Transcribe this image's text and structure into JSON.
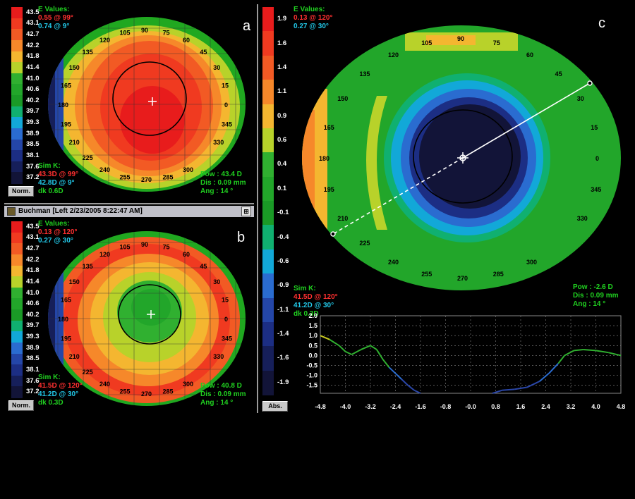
{
  "panel_a": {
    "letter": "a",
    "scale": [
      "43.5",
      "43.1",
      "42.7",
      "42.2",
      "41.8",
      "41.4",
      "41.0",
      "40.6",
      "40.2",
      "39.7",
      "39.3",
      "38.9",
      "38.5",
      "38.1",
      "37.6",
      "37.2"
    ],
    "scale_colors": [
      "#e81c1c",
      "#f03a20",
      "#f25a24",
      "#f6882a",
      "#f4b630",
      "#b8d22a",
      "#30b030",
      "#22a62a",
      "#1a9a26",
      "#10b070",
      "#12a8d8",
      "#2a6cd0",
      "#2446a8",
      "#1c2e84",
      "#161f5a",
      "#121438"
    ],
    "e_values_title": "E Values:",
    "e_value_1": "0.55 @ 99°",
    "e_value_2": "0.74 @ 9°",
    "angle_labels": [
      "105",
      "90",
      "75",
      "120",
      "60",
      "135",
      "45",
      "150",
      "30",
      "165",
      "15",
      "180",
      "0",
      "195",
      "345",
      "210",
      "330",
      "225",
      "240",
      "300",
      "255",
      "270",
      "285"
    ],
    "simk_title": "Sim K:",
    "simk_1": "43.3D @ 99°",
    "simk_2": "42.8D @ 9°",
    "dk": "dk 0.6D",
    "pow": "Pow : 43.4 D",
    "dis": "Dis : 0.09 mm",
    "ang": "Ang : 14 °",
    "button": "Norm."
  },
  "panel_b": {
    "letter": "b",
    "title": "Buchman [Left 2/23/2005 8:22:47 AM]",
    "scale": [
      "43.5",
      "43.1",
      "42.7",
      "42.2",
      "41.8",
      "41.4",
      "41.0",
      "40.6",
      "40.2",
      "39.7",
      "39.3",
      "38.9",
      "38.5",
      "38.1",
      "37.6",
      "37.2"
    ],
    "e_values_title": "E Values:",
    "e_value_1": "0.13 @ 120°",
    "e_value_2": "0.27 @ 30°",
    "simk_title": "Sim K:",
    "simk_1": "41.5D @ 120°",
    "simk_2": "41.2D @ 30°",
    "dk": "dk 0.3D",
    "pow": "Pow : 40.8 D",
    "dis": "Dis : 0.09 mm",
    "ang": "Ang : 14 °",
    "button": "Norm."
  },
  "panel_c": {
    "letter": "c",
    "scale": [
      "1.9",
      "1.6",
      "1.4",
      "1.1",
      "0.9",
      "0.6",
      "0.4",
      "0.1",
      "-0.1",
      "-0.4",
      "-0.6",
      "-0.9",
      "-1.1",
      "-1.4",
      "-1.6",
      "-1.9"
    ],
    "scale_colors": [
      "#e81c1c",
      "#f03a20",
      "#f25a24",
      "#f6882a",
      "#f4b630",
      "#b8d22a",
      "#30b030",
      "#22a62a",
      "#1a9a26",
      "#10b070",
      "#12a8d8",
      "#2a6cd0",
      "#2446a8",
      "#1c2e84",
      "#161f5a",
      "#121438"
    ],
    "e_values_title": "E Values:",
    "e_value_1": "0.13 @ 120°",
    "e_value_2": "0.27 @ 30°",
    "simk_title": "Sim K:",
    "simk_1": "41.5D @ 120°",
    "simk_2": "41.2D @ 30°",
    "dk": "dk 0.3D",
    "pow": "Pow : -2.6 D",
    "dis": "Dis : 0.09 mm",
    "ang": "Ang : 14 °",
    "button": "Abs."
  },
  "chart_data": {
    "type": "line",
    "title": "",
    "xlabel": "",
    "ylabel": "",
    "xlim": [
      -4.8,
      4.8
    ],
    "ylim": [
      -1.9,
      2.0
    ],
    "x_ticks": [
      "-4.8",
      "-4.0",
      "-3.2",
      "-2.4",
      "-1.6",
      "-0.8",
      "-0.0",
      "0.8",
      "1.6",
      "2.4",
      "3.2",
      "4.0",
      "4.8"
    ],
    "y_ticks": [
      "2.0",
      "1.5",
      "1.0",
      "0.5",
      "0.0",
      "-0.5",
      "-1.0",
      "-1.5"
    ],
    "grid": true,
    "series": [
      {
        "x": [
          -4.8,
          -4.5,
          -4.2,
          -4.0,
          -3.8,
          -3.5,
          -3.2,
          -3.0,
          -2.8,
          -2.6,
          -2.4,
          -2.2,
          -2.0,
          -1.8,
          -1.6
        ],
        "y": [
          1.0,
          0.8,
          0.5,
          0.2,
          0.05,
          0.3,
          0.5,
          0.3,
          -0.2,
          -0.6,
          -0.9,
          -1.2,
          -1.5,
          -1.75,
          -1.9
        ]
      },
      {
        "x": [
          0.7,
          1.0,
          1.4,
          1.8,
          2.2,
          2.5,
          2.8,
          3.0,
          3.3,
          3.6,
          4.0,
          4.4,
          4.8
        ],
        "y": [
          -1.9,
          -1.75,
          -1.7,
          -1.6,
          -1.3,
          -0.9,
          -0.4,
          0.0,
          0.25,
          0.3,
          0.25,
          0.15,
          0.0
        ]
      }
    ]
  }
}
